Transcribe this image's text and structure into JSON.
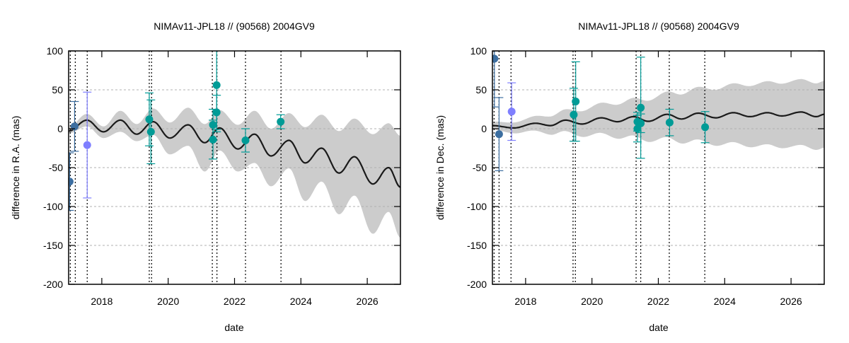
{
  "colors": {
    "band": "#cccccc",
    "model": "#1a1a1a",
    "group_a": "#3c6ea0",
    "group_b": "#7f7fff",
    "group_c": "#009b96",
    "grid": "#b0b0b0"
  },
  "chart_data": [
    {
      "type": "line",
      "title": "NIMAv11-JPL18 // (90568) 2004GV9",
      "xlabel": "date",
      "ylabel": "difference in R.A. (mas)",
      "xlim": [
        2017,
        2027
      ],
      "ylim": [
        -200,
        100
      ],
      "xticks": [
        2018,
        2020,
        2022,
        2024,
        2026
      ],
      "yticks": [
        -200,
        -150,
        -100,
        -50,
        0,
        50,
        100
      ],
      "grid": true,
      "obs_dates": [
        2017.05,
        2017.2,
        2017.56,
        2019.43,
        2019.5,
        2021.33,
        2021.47,
        2022.33,
        2023.4
      ],
      "model_extrema": [
        [
          2017.0,
          -3
        ],
        [
          2017.55,
          11
        ],
        [
          2018.05,
          -4
        ],
        [
          2018.56,
          11
        ],
        [
          2019.05,
          -7
        ],
        [
          2019.55,
          9
        ],
        [
          2020.05,
          -12
        ],
        [
          2020.6,
          5
        ],
        [
          2021.1,
          -18
        ],
        [
          2021.55,
          1
        ],
        [
          2022.1,
          -26
        ],
        [
          2022.6,
          -7
        ],
        [
          2023.1,
          -35
        ],
        [
          2023.64,
          -15
        ],
        [
          2024.13,
          -44
        ],
        [
          2024.62,
          -25
        ],
        [
          2025.15,
          -57
        ],
        [
          2025.61,
          -36
        ],
        [
          2026.17,
          -71
        ],
        [
          2026.64,
          -50
        ],
        [
          2027.0,
          -75
        ]
      ],
      "band": [
        [
          2017.0,
          2,
          -6
        ],
        [
          2017.55,
          19,
          3
        ],
        [
          2018.05,
          3,
          -12
        ],
        [
          2018.56,
          23,
          -4
        ],
        [
          2019.05,
          6,
          -16
        ],
        [
          2019.55,
          26,
          -8
        ],
        [
          2020.05,
          8,
          -33
        ],
        [
          2020.6,
          27,
          -22
        ],
        [
          2021.1,
          6,
          -55
        ],
        [
          2021.55,
          24,
          -28
        ],
        [
          2022.1,
          5,
          -55
        ],
        [
          2022.6,
          23,
          -44
        ],
        [
          2023.1,
          0,
          -74
        ],
        [
          2023.64,
          20,
          -51
        ],
        [
          2024.13,
          2,
          -93
        ],
        [
          2024.62,
          18,
          -68
        ],
        [
          2025.15,
          -3,
          -110
        ],
        [
          2025.61,
          13,
          -86
        ],
        [
          2026.17,
          -7,
          -135
        ],
        [
          2026.64,
          7,
          -107
        ],
        [
          2027.0,
          -9,
          -140
        ]
      ],
      "points": [
        {
          "x": 2017.03,
          "y": -68,
          "err": 37,
          "group": "group_a"
        },
        {
          "x": 2017.18,
          "y": 3,
          "err": 32,
          "group": "group_a"
        },
        {
          "x": 2017.56,
          "y": -21,
          "err": 68,
          "group": "group_b"
        },
        {
          "x": 2019.43,
          "y": 12,
          "err": 34,
          "group": "group_c"
        },
        {
          "x": 2019.48,
          "y": -4,
          "err": 41,
          "group": "group_c"
        },
        {
          "x": 2021.46,
          "y": 56,
          "err": 60,
          "group": "group_c"
        },
        {
          "x": 2021.46,
          "y": 21,
          "err": 22,
          "group": "group_c"
        },
        {
          "x": 2021.35,
          "y": 5,
          "err": 20,
          "group": "group_c"
        },
        {
          "x": 2021.35,
          "y": -14,
          "err": 25,
          "group": "group_c"
        },
        {
          "x": 2022.33,
          "y": -15,
          "err": 15,
          "group": "group_c"
        },
        {
          "x": 2023.39,
          "y": 9,
          "err": 9,
          "group": "group_c"
        }
      ]
    },
    {
      "type": "line",
      "title": "NIMAv11-JPL18 // (90568) 2004GV9",
      "xlabel": "date",
      "ylabel": "difference in Dec. (mas)",
      "xlim": [
        2017,
        2027
      ],
      "ylim": [
        -200,
        100
      ],
      "xticks": [
        2018,
        2020,
        2022,
        2024,
        2026
      ],
      "yticks": [
        -200,
        -150,
        -100,
        -50,
        0,
        50,
        100
      ],
      "grid": true,
      "obs_dates": [
        2017.05,
        2017.2,
        2017.56,
        2019.43,
        2019.5,
        2021.33,
        2021.47,
        2022.33,
        2023.4
      ],
      "model_extrema": [
        [
          2017.0,
          4
        ],
        [
          2017.65,
          1
        ],
        [
          2018.3,
          7
        ],
        [
          2018.75,
          4
        ],
        [
          2019.2,
          11
        ],
        [
          2019.7,
          6
        ],
        [
          2020.28,
          14
        ],
        [
          2020.77,
          9
        ],
        [
          2021.25,
          15.5
        ],
        [
          2021.7,
          9.5
        ],
        [
          2022.27,
          18.5
        ],
        [
          2022.7,
          12.5
        ],
        [
          2023.2,
          20
        ],
        [
          2023.73,
          14
        ],
        [
          2024.26,
          20.6
        ],
        [
          2024.76,
          15.5
        ],
        [
          2025.29,
          20.6
        ],
        [
          2025.72,
          16.4
        ],
        [
          2026.3,
          21.5
        ],
        [
          2026.76,
          15.5
        ],
        [
          2027.0,
          18.5
        ]
      ],
      "band_halfwidth": [
        [
          2017,
          5
        ],
        [
          2018,
          8
        ],
        [
          2019,
          13
        ],
        [
          2020,
          18
        ],
        [
          2021,
          23
        ],
        [
          2022,
          28
        ],
        [
          2023,
          33
        ],
        [
          2024,
          37
        ],
        [
          2025,
          40
        ],
        [
          2026,
          42
        ],
        [
          2027,
          43
        ]
      ],
      "points": [
        {
          "x": 2017.06,
          "y": 90,
          "err": 62,
          "group": "group_a"
        },
        {
          "x": 2017.2,
          "y": -7,
          "err": 47,
          "group": "group_a"
        },
        {
          "x": 2017.58,
          "y": 22,
          "err": 37,
          "group": "group_b"
        },
        {
          "x": 2019.45,
          "y": 18,
          "err": 34,
          "group": "group_c"
        },
        {
          "x": 2019.51,
          "y": 35,
          "err": 51,
          "group": "group_c"
        },
        {
          "x": 2021.47,
          "y": 27,
          "err": 65,
          "group": "group_c"
        },
        {
          "x": 2021.37,
          "y": 9,
          "err": 12,
          "group": "group_c"
        },
        {
          "x": 2021.47,
          "y": 7,
          "err": 12,
          "group": "group_c"
        },
        {
          "x": 2021.37,
          "y": 0,
          "err": 17,
          "group": "group_c"
        },
        {
          "x": 2022.34,
          "y": 8,
          "err": 17,
          "group": "group_c"
        },
        {
          "x": 2023.41,
          "y": 2,
          "err": 20,
          "group": "group_c"
        }
      ]
    }
  ]
}
